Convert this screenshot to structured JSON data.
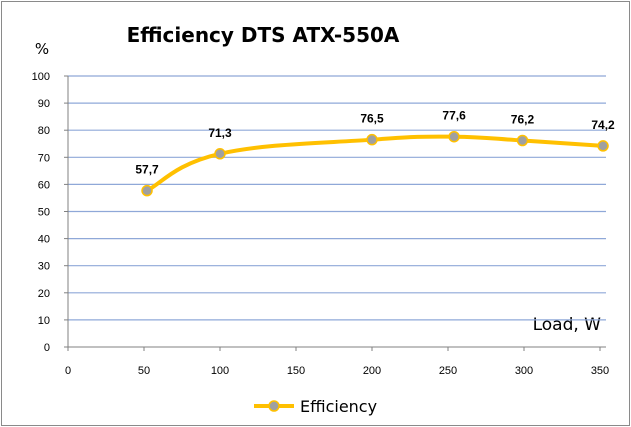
{
  "chart_data": {
    "type": "line",
    "title": "Efficiency DTS ATX-550A",
    "ylabel": "%",
    "xlabel": "Load, W",
    "x": [
      52,
      100,
      200,
      254,
      299,
      352
    ],
    "series": [
      {
        "name": "Efficiency",
        "values": [
          57.7,
          71.3,
          76.5,
          77.6,
          76.2,
          74.2
        ],
        "labels": [
          "57,7",
          "71,3",
          "76,5",
          "77,6",
          "76,2",
          "74,2"
        ],
        "color": "#FFC000",
        "marker_color": "#A0A0A0"
      }
    ],
    "xlim": [
      0,
      350
    ],
    "ylim": [
      0,
      100
    ],
    "xticks": [
      "0",
      "50",
      "100",
      "150",
      "200",
      "250",
      "300",
      "350"
    ],
    "yticks": [
      "0",
      "10",
      "20",
      "30",
      "40",
      "50",
      "60",
      "70",
      "80",
      "90",
      "100"
    ],
    "grid": true,
    "grid_color": "#8FA8D8",
    "legend": "bottom"
  }
}
